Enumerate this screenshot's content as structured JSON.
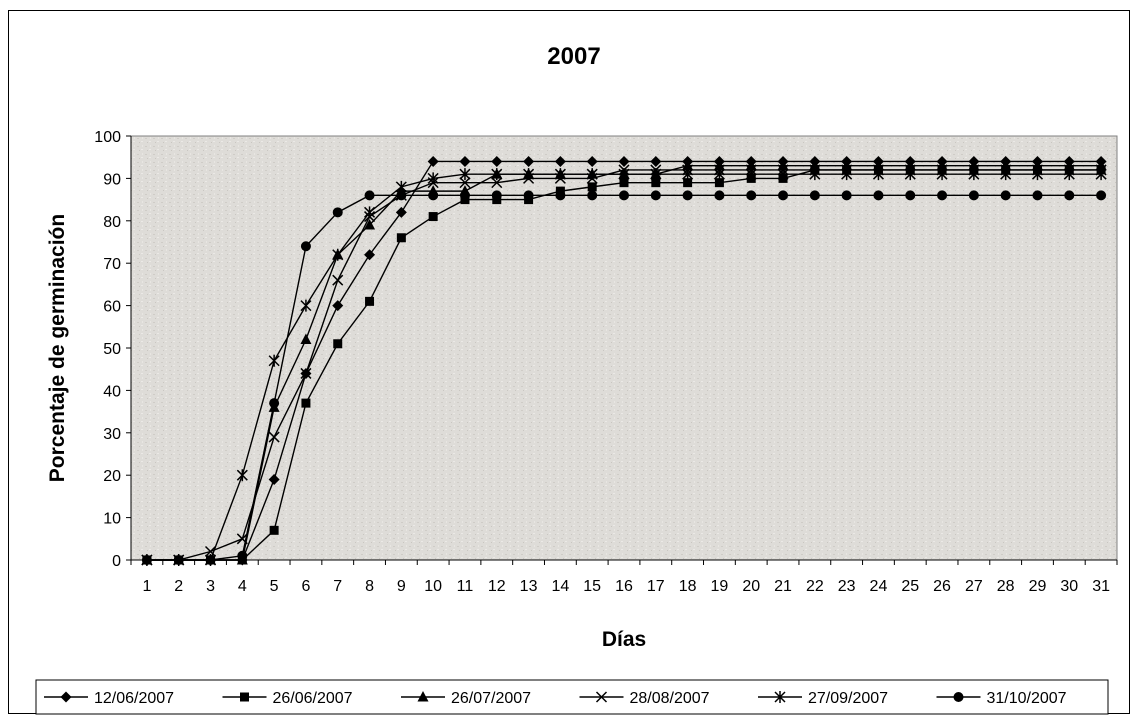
{
  "chart_data": {
    "type": "line",
    "title": "2007",
    "xlabel": "Días",
    "ylabel": "Porcentaje de germinación",
    "ylim": [
      0,
      100
    ],
    "y_ticks": [
      0,
      10,
      20,
      30,
      40,
      50,
      60,
      70,
      80,
      90,
      100
    ],
    "x": [
      1,
      2,
      3,
      4,
      5,
      6,
      7,
      8,
      9,
      10,
      11,
      12,
      13,
      14,
      15,
      16,
      17,
      18,
      19,
      20,
      21,
      22,
      23,
      24,
      25,
      26,
      27,
      28,
      29,
      30,
      31
    ],
    "grid": false,
    "legend_position": "bottom",
    "series": [
      {
        "name": "12/06/2007",
        "marker": "diamond",
        "values": [
          0,
          0,
          0,
          0,
          19,
          44,
          60,
          72,
          82,
          94,
          94,
          94,
          94,
          94,
          94,
          94,
          94,
          94,
          94,
          94,
          94,
          94,
          94,
          94,
          94,
          94,
          94,
          94,
          94,
          94,
          94
        ]
      },
      {
        "name": "26/06/2007",
        "marker": "square",
        "values": [
          0,
          0,
          0,
          0,
          7,
          37,
          51,
          61,
          76,
          81,
          85,
          85,
          85,
          87,
          88,
          89,
          89,
          89,
          89,
          90,
          90,
          92,
          92,
          92,
          92,
          92,
          92,
          92,
          92,
          92,
          92
        ]
      },
      {
        "name": "26/07/2007",
        "marker": "triangle",
        "values": [
          0,
          0,
          0,
          0,
          36,
          52,
          72,
          79,
          87,
          87,
          87,
          91,
          91,
          91,
          91,
          91,
          91,
          93,
          93,
          93,
          93,
          93,
          93,
          93,
          93,
          93,
          93,
          93,
          93,
          93,
          93
        ]
      },
      {
        "name": "28/08/2007",
        "marker": "x",
        "values": [
          0,
          0,
          2,
          5,
          29,
          44,
          66,
          81,
          86,
          89,
          89,
          89,
          90,
          90,
          90,
          92,
          92,
          92,
          92,
          92,
          92,
          92,
          92,
          92,
          92,
          92,
          92,
          92,
          92,
          92,
          92
        ]
      },
      {
        "name": "27/09/2007",
        "marker": "star",
        "values": [
          0,
          0,
          0,
          20,
          47,
          60,
          72,
          82,
          88,
          90,
          91,
          91,
          91,
          91,
          91,
          91,
          91,
          91,
          91,
          91,
          91,
          91,
          91,
          91,
          91,
          91,
          91,
          91,
          91,
          91,
          91
        ]
      },
      {
        "name": "31/10/2007",
        "marker": "circle",
        "values": [
          0,
          0,
          0,
          1,
          37,
          74,
          82,
          86,
          86,
          86,
          86,
          86,
          86,
          86,
          86,
          86,
          86,
          86,
          86,
          86,
          86,
          86,
          86,
          86,
          86,
          86,
          86,
          86,
          86,
          86,
          86
        ]
      }
    ]
  }
}
